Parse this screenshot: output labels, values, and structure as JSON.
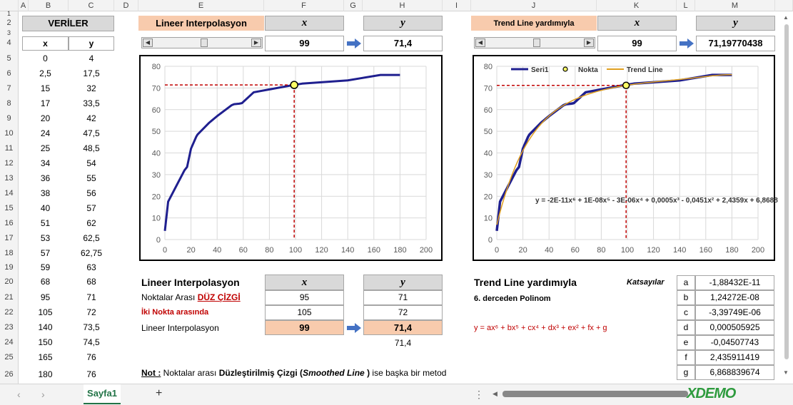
{
  "columns": [
    "A",
    "B",
    "C",
    "D",
    "E",
    "F",
    "G",
    "H",
    "I",
    "J",
    "K",
    "L",
    "M"
  ],
  "rows": [
    "1",
    "2",
    "3",
    "4",
    "5",
    "6",
    "7",
    "8",
    "9",
    "10",
    "11",
    "12",
    "13",
    "14",
    "15",
    "16",
    "17",
    "18",
    "19",
    "20",
    "21",
    "22",
    "23",
    "24",
    "25",
    "26"
  ],
  "data_table": {
    "title": "VERİLER",
    "header_x": "x",
    "header_y": "y",
    "x": [
      "0",
      "2,5",
      "15",
      "17",
      "20",
      "24",
      "25",
      "34",
      "36",
      "38",
      "40",
      "51",
      "53",
      "57",
      "59",
      "68",
      "95",
      "105",
      "140",
      "150",
      "165",
      "180"
    ],
    "y": [
      "4",
      "17,5",
      "32",
      "33,5",
      "42",
      "47,5",
      "48,5",
      "54",
      "55",
      "56",
      "57",
      "62",
      "62,5",
      "62,75",
      "63",
      "68",
      "71",
      "72",
      "73,5",
      "74,5",
      "76",
      "76"
    ]
  },
  "linear_panel": {
    "title": "Lineer Interpolasyon",
    "x_header": "x",
    "y_header": "y",
    "x_value": "99",
    "y_value": "71,4",
    "scroll_position": 0.5
  },
  "trend_panel": {
    "title": "Trend Line yardımıyla",
    "x_header": "x",
    "y_header": "y",
    "x_value": "99",
    "y_value": "71,19770438",
    "scroll_position": 0.5
  },
  "bottom_linear": {
    "title": "Lineer Interpolasyon",
    "x_header": "x",
    "y_header": "y",
    "row1_label_prefix": "Noktalar Arası ",
    "row1_label_em": "DÜZ ÇİZGİ",
    "row1_x": "95",
    "row1_y": "71",
    "row2_label": "İki Nokta arasında",
    "row2_x": "105",
    "row2_y": "72",
    "row3_label": "Lineer Interpolasyon",
    "row3_x": "99",
    "row3_y": "71,4",
    "row4_y": "71,4"
  },
  "bottom_trend": {
    "title": "Trend Line  yardımıyla",
    "subtitle": "6. derceden Polinom",
    "formula": "y = ax⁶ + bx⁵ + cx⁴ + dx³ + ex² + fx + g",
    "coef_title": "Katsayılar",
    "coefficients": [
      {
        "name": "a",
        "value": "-1,88432E-11"
      },
      {
        "name": "b",
        "value": "1,24272E-08"
      },
      {
        "name": "c",
        "value": "-3,39749E-06"
      },
      {
        "name": "d",
        "value": "0,000505925"
      },
      {
        "name": "e",
        "value": "-0,04507743"
      },
      {
        "name": "f",
        "value": "2,435911419"
      },
      {
        "name": "g",
        "value": "6,868839674"
      }
    ]
  },
  "note": {
    "label": "Not :",
    "text1": " Noktalar arası ",
    "bold1": "Düzleştirilmiş Çizgi (",
    "ital1": "Smoothed Line",
    "bold2": " )",
    "text2": " ise başka bir metod"
  },
  "sheet_tab": "Sayfa1",
  "add_sheet": "+",
  "watermark": "XDEMO",
  "chart_data": [
    {
      "type": "line",
      "title": "",
      "x": [
        0,
        2.5,
        15,
        17,
        20,
        24,
        25,
        34,
        36,
        38,
        40,
        51,
        53,
        57,
        59,
        68,
        95,
        105,
        140,
        150,
        165,
        180
      ],
      "y": [
        4,
        17.5,
        32,
        33.5,
        42,
        47.5,
        48.5,
        54,
        55,
        56,
        57,
        62,
        62.5,
        62.75,
        63,
        68,
        71,
        72,
        73.5,
        74.5,
        76,
        76
      ],
      "point": {
        "x": 99,
        "y": 71.4
      },
      "xlim": [
        0,
        200
      ],
      "ylim": [
        0,
        80
      ],
      "xticks": [
        "0",
        "20",
        "40",
        "60",
        "80",
        "100",
        "120",
        "140",
        "160",
        "180",
        "200"
      ],
      "yticks": [
        "0",
        "10",
        "20",
        "30",
        "40",
        "50",
        "60",
        "70",
        "80"
      ],
      "grid": true,
      "colors": {
        "line": "#1f1f8f",
        "guide": "#c00000",
        "point": "#ffff66"
      }
    },
    {
      "type": "line",
      "title": "",
      "series": [
        {
          "name": "Seri1",
          "x": [
            0,
            2.5,
            15,
            17,
            20,
            24,
            25,
            34,
            36,
            38,
            40,
            51,
            53,
            57,
            59,
            68,
            95,
            105,
            140,
            150,
            165,
            180
          ],
          "y": [
            4,
            17.5,
            32,
            33.5,
            42,
            47.5,
            48.5,
            54,
            55,
            56,
            57,
            62,
            62.5,
            62.75,
            63,
            68,
            71,
            72,
            73.5,
            74.5,
            76,
            76
          ]
        },
        {
          "name": "Nokta",
          "x": [
            99
          ],
          "y": [
            71.19770438
          ]
        },
        {
          "name": "Trend Line",
          "coefficients": [
            -1.88432e-11,
            1.24272e-08,
            -3.39749e-06,
            0.000505925,
            -0.04507743,
            2.435911419,
            6.868839674
          ]
        }
      ],
      "equation": "y = -2E-11x⁶ + 1E-08x⁵ - 3E-06x⁴ + 0,0005x³ - 0,0451x² + 2,4359x + 6,8688",
      "xlim": [
        0,
        200
      ],
      "ylim": [
        0,
        80
      ],
      "xticks": [
        "0",
        "20",
        "40",
        "60",
        "80",
        "100",
        "120",
        "140",
        "160",
        "180",
        "200"
      ],
      "yticks": [
        "0",
        "10",
        "20",
        "30",
        "40",
        "50",
        "60",
        "70",
        "80"
      ],
      "grid": true,
      "legend": "top-left",
      "colors": {
        "line": "#1f1f8f",
        "trend": "#e0a020",
        "guide": "#c00000",
        "point": "#ffff66"
      }
    }
  ]
}
